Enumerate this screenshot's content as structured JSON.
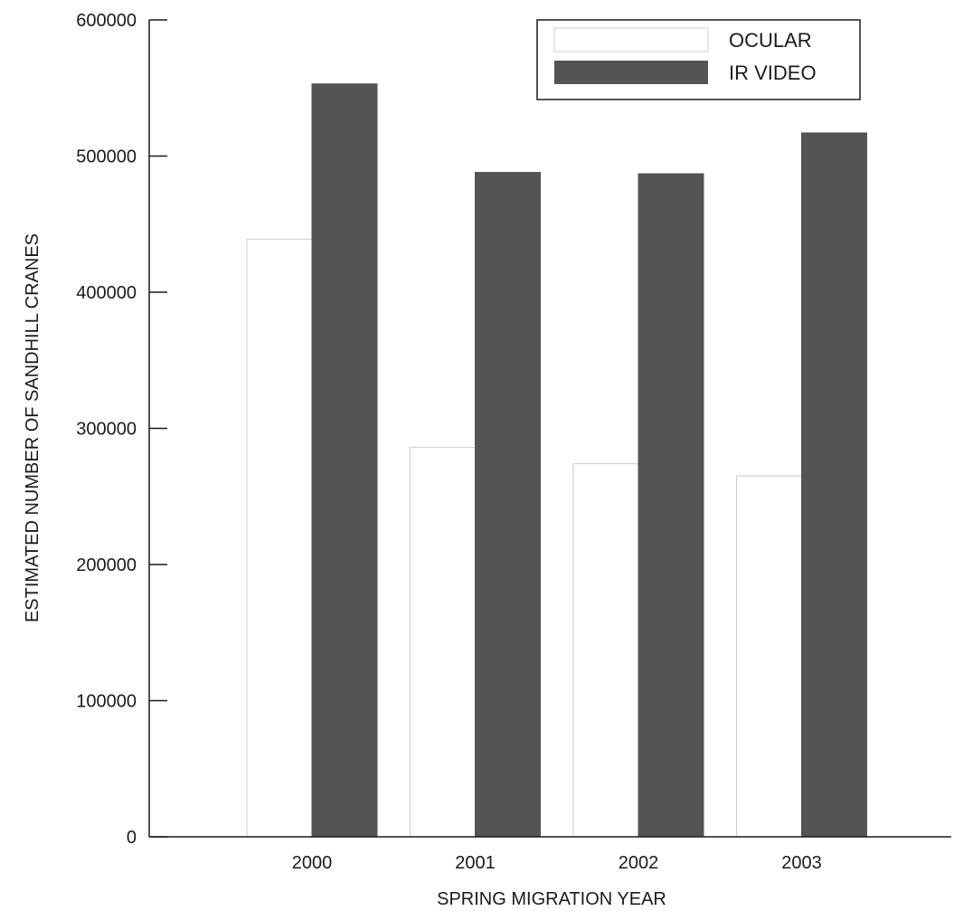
{
  "chart_data": {
    "type": "bar",
    "title": "",
    "xlabel": "SPRING MIGRATION YEAR",
    "ylabel": "ESTIMATED NUMBER OF SANDHILL CRANES",
    "categories": [
      "2000",
      "2001",
      "2002",
      "2003"
    ],
    "series": [
      {
        "name": "OCULAR",
        "values": [
          439000,
          286000,
          274000,
          265000
        ],
        "fill": "#ffffff",
        "stroke": "#cccccc"
      },
      {
        "name": "IR VIDEO",
        "values": [
          553000,
          488000,
          487000,
          517000
        ],
        "fill": "#545454",
        "stroke": "#545454"
      }
    ],
    "ylim": [
      0,
      600000
    ],
    "yticks": [
      "0",
      "100000",
      "200000",
      "300000",
      "400000",
      "500000",
      "600000"
    ],
    "ytick_values": [
      0,
      100000,
      200000,
      300000,
      400000,
      500000,
      600000
    ],
    "grid": false,
    "legend_position": "top-right"
  }
}
